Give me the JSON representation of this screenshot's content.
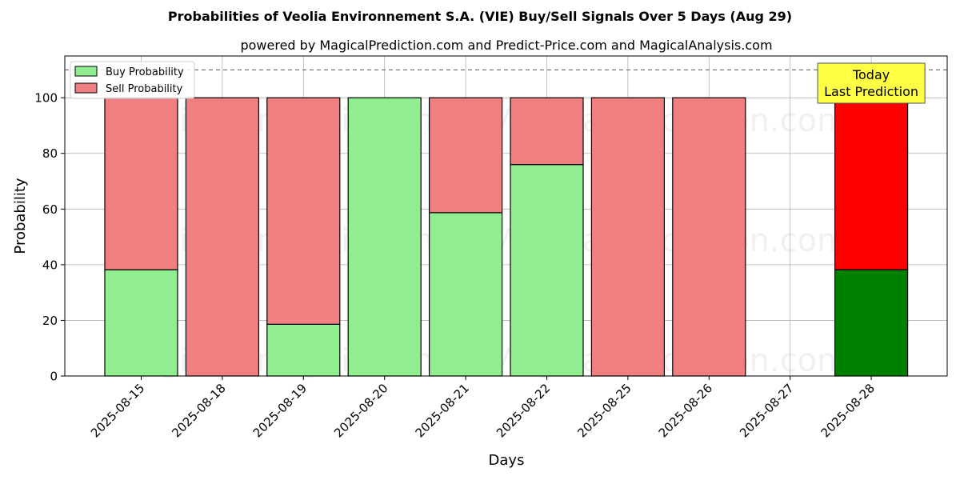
{
  "chart_data": {
    "type": "bar",
    "stacked": true,
    "title": "Probabilities of Veolia Environnement S.A. (VIE) Buy/Sell Signals Over 5 Days (Aug 29)",
    "subtitle": "powered by MagicalPrediction.com and Predict-Price.com and MagicalAnalysis.com",
    "xlabel": "Days",
    "ylabel": "Probability",
    "ylim": [
      0,
      115
    ],
    "yticks": [
      0,
      20,
      40,
      60,
      80,
      100
    ],
    "grid": true,
    "reference_line": 110,
    "legend_position": "top-left",
    "categories": [
      "2025-08-15",
      "2025-08-18",
      "2025-08-19",
      "2025-08-20",
      "2025-08-21",
      "2025-08-22",
      "2025-08-25",
      "2025-08-26",
      "2025-08-27",
      "2025-08-28"
    ],
    "series": [
      {
        "name": "Buy Probability",
        "color": "#90ee90",
        "highlight_color": "#008000",
        "values": [
          38.2,
          0,
          18.6,
          100,
          58.7,
          76.0,
          0,
          0,
          null,
          38.2
        ]
      },
      {
        "name": "Sell Probability",
        "color": "#f08080",
        "highlight_color": "#ff0000",
        "values": [
          61.8,
          100,
          81.4,
          0,
          41.3,
          24.0,
          100,
          100,
          null,
          61.8
        ]
      }
    ],
    "highlight_category": "2025-08-28",
    "annotation": {
      "line1": "Today",
      "line2": "Last Prediction",
      "background": "#ffff44"
    },
    "watermarks": [
      "MagicalAnalysis.com",
      "MagicalPrediction.com"
    ]
  }
}
